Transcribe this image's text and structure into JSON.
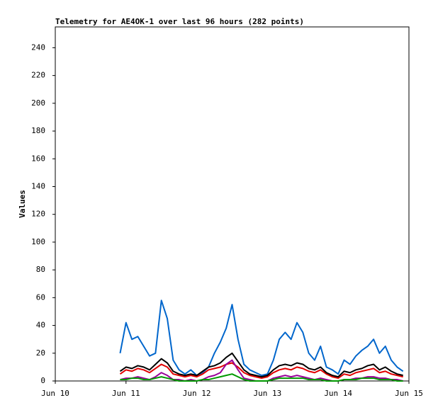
{
  "chart_data": {
    "type": "line",
    "title": "Telemetry for AE4OK-1 over last 96 hours (282 points)",
    "y_label": "Values",
    "x": [
      22,
      24,
      26,
      28,
      30,
      32,
      34,
      36,
      38,
      40,
      42,
      44,
      46,
      48,
      50,
      52,
      54,
      56,
      58,
      60,
      62,
      64,
      66,
      68,
      70,
      72,
      74,
      76,
      78,
      80,
      82,
      84,
      86,
      88,
      90,
      92,
      94,
      96,
      98,
      100,
      102,
      104,
      106,
      108,
      110,
      112,
      114,
      116,
      118
    ],
    "xlim": [
      0,
      120
    ],
    "xticks": [
      {
        "value": 0,
        "label": "Jun 10"
      },
      {
        "value": 24,
        "label": "Jun 11"
      },
      {
        "value": 48,
        "label": "Jun 12"
      },
      {
        "value": 72,
        "label": "Jun 13"
      },
      {
        "value": 96,
        "label": "Jun 14"
      },
      {
        "value": 120,
        "label": "Jun 15"
      }
    ],
    "ylim": [
      0,
      255
    ],
    "yticks": [
      0,
      20,
      40,
      60,
      80,
      100,
      120,
      140,
      160,
      180,
      200,
      220,
      240
    ],
    "series": [
      {
        "color": "#0066cc",
        "values": [
          20,
          42,
          30,
          32,
          25,
          18,
          20,
          58,
          45,
          15,
          8,
          5,
          8,
          4,
          6,
          10,
          20,
          28,
          38,
          55,
          30,
          12,
          8,
          6,
          4,
          5,
          15,
          30,
          35,
          30,
          42,
          35,
          20,
          15,
          25,
          10,
          8,
          5,
          15,
          12,
          18,
          22,
          25,
          30,
          20,
          25,
          15,
          10,
          7
        ]
      },
      {
        "color": "#e00000",
        "values": [
          5,
          8,
          7,
          9,
          8,
          6,
          9,
          12,
          10,
          5,
          4,
          3,
          4,
          3,
          5,
          8,
          9,
          10,
          12,
          13,
          10,
          6,
          4,
          3,
          2,
          3,
          6,
          8,
          9,
          8,
          10,
          9,
          7,
          6,
          8,
          5,
          3,
          2,
          5,
          4,
          6,
          7,
          8,
          9,
          6,
          7,
          5,
          4,
          3
        ]
      },
      {
        "color": "#000000",
        "values": [
          7,
          10,
          9,
          11,
          10,
          8,
          12,
          16,
          13,
          7,
          5,
          4,
          5,
          4,
          7,
          10,
          11,
          13,
          17,
          20,
          14,
          8,
          5,
          4,
          3,
          4,
          8,
          11,
          12,
          11,
          13,
          12,
          9,
          8,
          10,
          6,
          4,
          3,
          7,
          6,
          8,
          9,
          11,
          12,
          8,
          10,
          7,
          5,
          4
        ]
      },
      {
        "color": "#990099",
        "values": [
          1,
          2,
          2,
          3,
          2,
          1,
          3,
          6,
          4,
          1,
          1,
          0,
          1,
          0,
          1,
          3,
          4,
          6,
          12,
          15,
          8,
          2,
          1,
          0,
          0,
          0,
          2,
          3,
          4,
          3,
          4,
          3,
          2,
          1,
          2,
          1,
          0,
          0,
          1,
          1,
          2,
          2,
          3,
          3,
          2,
          2,
          1,
          1,
          0
        ]
      },
      {
        "color": "#009900",
        "values": [
          1,
          1,
          2,
          2,
          1,
          1,
          2,
          3,
          2,
          1,
          0,
          0,
          0,
          0,
          1,
          1,
          2,
          3,
          4,
          5,
          3,
          1,
          0,
          0,
          0,
          0,
          1,
          2,
          2,
          2,
          2,
          2,
          1,
          1,
          1,
          0,
          0,
          0,
          1,
          1,
          1,
          2,
          2,
          2,
          1,
          1,
          1,
          0,
          0
        ]
      }
    ]
  }
}
